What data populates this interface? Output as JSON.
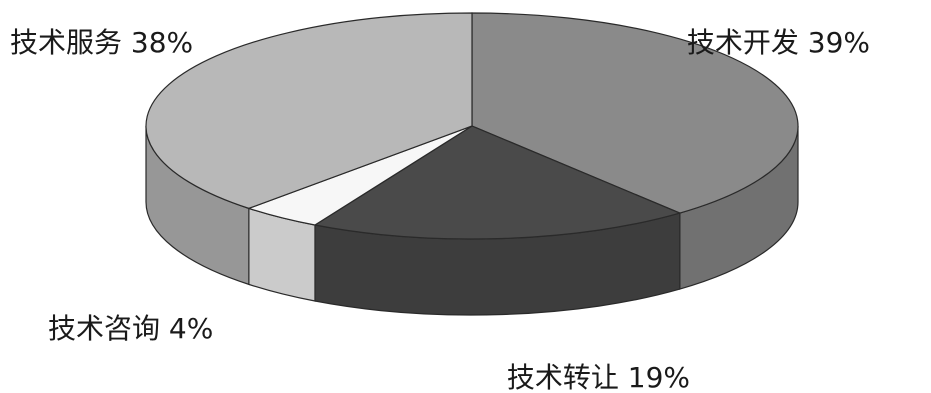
{
  "chart_data": {
    "type": "pie",
    "title": "",
    "style": "3d-tilted",
    "slices": [
      {
        "label": "技术开发",
        "value": 39,
        "display": "技术开发 39%",
        "color": "#8a8a8a"
      },
      {
        "label": "技术转让",
        "value": 19,
        "display": "技术转让 19%",
        "color": "#4a4a4a"
      },
      {
        "label": "技术咨询",
        "value": 4,
        "display": "技术咨询 4%",
        "color": "#f7f7f7"
      },
      {
        "label": "技术服务",
        "value": 38,
        "display": "技术服务 38%",
        "color": "#b8b8b8"
      }
    ]
  }
}
